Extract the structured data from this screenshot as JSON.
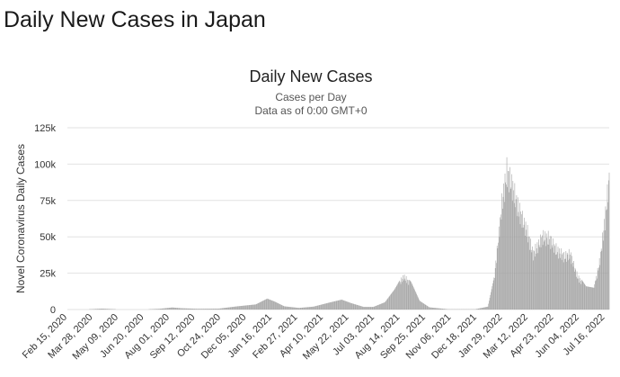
{
  "page": {
    "title": "Daily New Cases in Japan"
  },
  "chart_data": {
    "type": "bar",
    "title": "Daily New Cases",
    "subtitle_lines": [
      "Cases per Day",
      "Data as of 0:00 GMT+0"
    ],
    "ylabel": "Novel Coronavirus Daily Cases",
    "xlabel": "",
    "ylim": [
      0,
      125000
    ],
    "y_ticks": [
      0,
      25000,
      50000,
      75000,
      100000,
      125000
    ],
    "y_tick_labels": [
      "0",
      "25k",
      "50k",
      "75k",
      "100k",
      "125k"
    ],
    "x_range": [
      "2020-02-15",
      "2022-07-23"
    ],
    "x_tick_labels": [
      "Feb 15, 2020",
      "Mar 28, 2020",
      "May 09, 2020",
      "Jun 20, 2020",
      "Aug 01, 2020",
      "Sep 12, 2020",
      "Oct 24, 2020",
      "Dec 05, 2020",
      "Jan 16, 2021",
      "Feb 27, 2021",
      "Apr 10, 2021",
      "May 22, 2021",
      "Jul 03, 2021",
      "Aug 14, 2021",
      "Sep 25, 2021",
      "Nov 06, 2021",
      "Dec 18, 2021",
      "Jan 29, 2022",
      "Mar 12, 2022",
      "Apr 23, 2022",
      "Jun 04, 2022",
      "Jul 16, 2022"
    ],
    "grid": true,
    "bar_color": "#a3a3a3",
    "series": [
      {
        "values": [
          {
            "x": "2020-02-15",
            "y": 20
          },
          {
            "x": "2020-03-15",
            "y": 60
          },
          {
            "x": "2020-04-12",
            "y": 600
          },
          {
            "x": "2020-05-10",
            "y": 80
          },
          {
            "x": "2020-06-20",
            "y": 60
          },
          {
            "x": "2020-07-15",
            "y": 500
          },
          {
            "x": "2020-08-05",
            "y": 1400
          },
          {
            "x": "2020-08-20",
            "y": 900
          },
          {
            "x": "2020-09-15",
            "y": 500
          },
          {
            "x": "2020-10-20",
            "y": 600
          },
          {
            "x": "2020-11-20",
            "y": 2200
          },
          {
            "x": "2020-12-20",
            "y": 3500
          },
          {
            "x": "2021-01-08",
            "y": 7500
          },
          {
            "x": "2021-01-20",
            "y": 5500
          },
          {
            "x": "2021-02-05",
            "y": 2200
          },
          {
            "x": "2021-03-01",
            "y": 1100
          },
          {
            "x": "2021-03-25",
            "y": 2000
          },
          {
            "x": "2021-04-20",
            "y": 4800
          },
          {
            "x": "2021-05-10",
            "y": 6800
          },
          {
            "x": "2021-05-25",
            "y": 4500
          },
          {
            "x": "2021-06-15",
            "y": 1800
          },
          {
            "x": "2021-07-01",
            "y": 1800
          },
          {
            "x": "2021-07-20",
            "y": 5000
          },
          {
            "x": "2021-08-05",
            "y": 14000
          },
          {
            "x": "2021-08-20",
            "y": 25000
          },
          {
            "x": "2021-09-01",
            "y": 19000
          },
          {
            "x": "2021-09-15",
            "y": 6000
          },
          {
            "x": "2021-10-01",
            "y": 1500
          },
          {
            "x": "2021-11-01",
            "y": 200
          },
          {
            "x": "2021-12-15",
            "y": 200
          },
          {
            "x": "2022-01-05",
            "y": 2000
          },
          {
            "x": "2022-01-15",
            "y": 22000
          },
          {
            "x": "2022-01-28",
            "y": 80000
          },
          {
            "x": "2022-02-05",
            "y": 105000
          },
          {
            "x": "2022-02-15",
            "y": 92000
          },
          {
            "x": "2022-02-25",
            "y": 75000
          },
          {
            "x": "2022-03-10",
            "y": 60000
          },
          {
            "x": "2022-03-20",
            "y": 42000
          },
          {
            "x": "2022-04-05",
            "y": 55000
          },
          {
            "x": "2022-04-15",
            "y": 54000
          },
          {
            "x": "2022-04-28",
            "y": 45000
          },
          {
            "x": "2022-05-10",
            "y": 40000
          },
          {
            "x": "2022-05-20",
            "y": 42000
          },
          {
            "x": "2022-06-01",
            "y": 25000
          },
          {
            "x": "2022-06-15",
            "y": 16000
          },
          {
            "x": "2022-06-28",
            "y": 15000
          },
          {
            "x": "2022-07-08",
            "y": 38000
          },
          {
            "x": "2022-07-16",
            "y": 68000
          },
          {
            "x": "2022-07-23",
            "y": 100000
          }
        ]
      }
    ]
  }
}
